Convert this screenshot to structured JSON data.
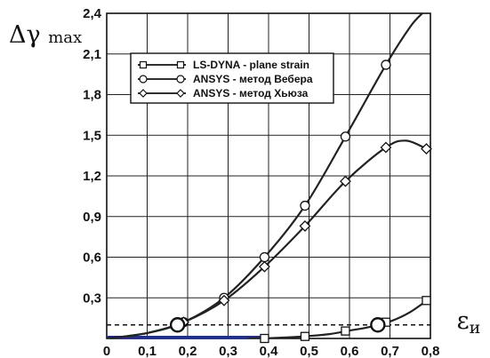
{
  "chart_data": {
    "type": "line",
    "ylabel": "Δγmax",
    "xlabel": "εи",
    "xlim": [
      0,
      0.8
    ],
    "ylim": [
      0,
      2.4
    ],
    "x_ticks": [
      "0",
      "0,1",
      "0,2",
      "0,3",
      "0,4",
      "0,5",
      "0,6",
      "0,7",
      "0,8"
    ],
    "y_ticks": [
      "0,3",
      "0,6",
      "0,9",
      "1,2",
      "1,5",
      "1,8",
      "2,1",
      "2,4"
    ],
    "grid": true,
    "legend_position": "top-left",
    "series": [
      {
        "name": "LS-DYNA - plane strain",
        "marker": "square",
        "color": "#222222",
        "points": [
          [
            0.39,
            0.0
          ],
          [
            0.49,
            0.015
          ],
          [
            0.59,
            0.055
          ],
          [
            0.69,
            0.12
          ],
          [
            0.79,
            0.28
          ]
        ],
        "curve": [
          [
            0.35,
            0.0
          ],
          [
            0.4,
            0.002
          ],
          [
            0.45,
            0.008
          ],
          [
            0.5,
            0.018
          ],
          [
            0.55,
            0.032
          ],
          [
            0.6,
            0.058
          ],
          [
            0.65,
            0.085
          ],
          [
            0.7,
            0.125
          ],
          [
            0.75,
            0.195
          ],
          [
            0.8,
            0.3
          ]
        ]
      },
      {
        "name": "ANSYS - метод Вебера",
        "marker": "circle",
        "color": "#222222",
        "points": [
          [
            0.19,
            0.12
          ],
          [
            0.29,
            0.3
          ],
          [
            0.39,
            0.6
          ],
          [
            0.49,
            0.98
          ],
          [
            0.59,
            1.49
          ],
          [
            0.69,
            2.02
          ]
        ],
        "curve": [
          [
            0.0,
            0.0
          ],
          [
            0.1,
            0.04
          ],
          [
            0.19,
            0.12
          ],
          [
            0.29,
            0.3
          ],
          [
            0.39,
            0.6
          ],
          [
            0.49,
            0.98
          ],
          [
            0.59,
            1.49
          ],
          [
            0.69,
            2.02
          ],
          [
            0.75,
            2.3
          ],
          [
            0.78,
            2.4
          ]
        ]
      },
      {
        "name": "ANSYS - метод Хьюза",
        "marker": "diamond",
        "color": "#222222",
        "points": [
          [
            0.19,
            0.12
          ],
          [
            0.29,
            0.28
          ],
          [
            0.39,
            0.53
          ],
          [
            0.49,
            0.83
          ],
          [
            0.59,
            1.16
          ],
          [
            0.69,
            1.41
          ],
          [
            0.79,
            1.4
          ]
        ],
        "curve": [
          [
            0.0,
            0.0
          ],
          [
            0.1,
            0.04
          ],
          [
            0.19,
            0.12
          ],
          [
            0.29,
            0.28
          ],
          [
            0.39,
            0.53
          ],
          [
            0.49,
            0.83
          ],
          [
            0.59,
            1.16
          ],
          [
            0.69,
            1.41
          ],
          [
            0.74,
            1.46
          ],
          [
            0.79,
            1.4
          ]
        ]
      }
    ],
    "reference_line": {
      "y": 0.1,
      "style": "dashed"
    },
    "highlight_points": [
      [
        0.175,
        0.1
      ],
      [
        0.67,
        0.1
      ]
    ],
    "baseline_segment": {
      "x": [
        0.0,
        0.39
      ],
      "y": 0.0,
      "color": "#1f2f8f"
    }
  }
}
